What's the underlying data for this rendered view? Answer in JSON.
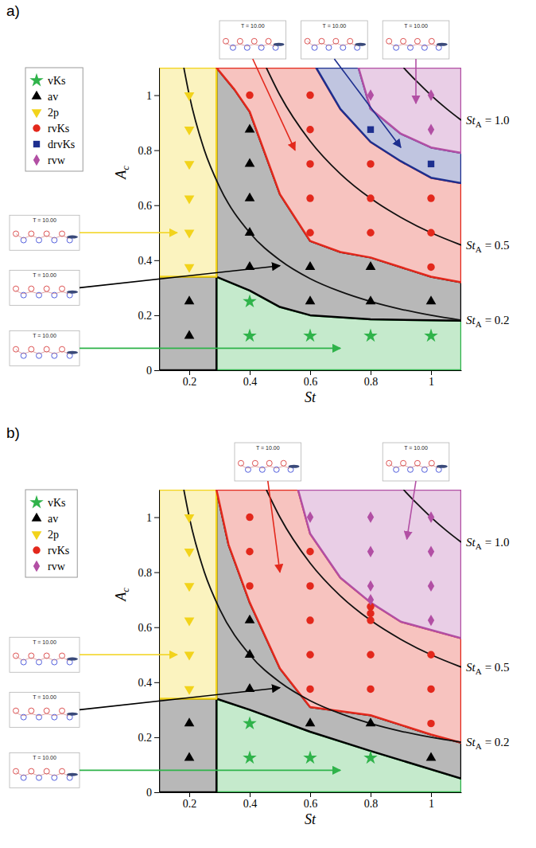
{
  "chart_data": [
    {
      "type": "scatter",
      "title": "a)",
      "x_label": "St",
      "y_label": [
        "A",
        "c"
      ],
      "xlim": [
        0.1,
        1.1
      ],
      "ylim": [
        0,
        1.1
      ],
      "xticks": [
        0.2,
        0.4,
        0.6,
        0.8,
        1
      ],
      "yticks": [
        0,
        0.2,
        0.4,
        0.6,
        0.8,
        1
      ],
      "legend": "left",
      "series": [
        {
          "name": "vKs",
          "color": "#2fb34a",
          "marker": "star",
          "x": [
            0.4,
            0.4,
            0.6,
            0.8,
            1.0
          ],
          "values": [
            0.25,
            0.125,
            0.125,
            0.125,
            0.125
          ],
          "regions": [
            {
              "x": [
                0.29,
                0.29,
                0.4,
                0.5,
                0.6,
                0.8,
                1.1,
                1.1
              ],
              "y": [
                0,
                0.34,
                0.29,
                0.23,
                0.2,
                0.185,
                0.18,
                0
              ]
            }
          ],
          "inset": "T = 10.00"
        },
        {
          "name": "av",
          "color": "#000000",
          "marker": "triangle-up",
          "x": [
            0.2,
            0.2,
            0.4,
            0.4,
            0.4,
            0.4,
            0.4,
            0.6,
            0.6,
            0.8,
            0.8,
            1.0
          ],
          "values": [
            0.25,
            0.125,
            0.875,
            0.75,
            0.625,
            0.5,
            0.375,
            0.375,
            0.25,
            0.375,
            0.25,
            0.25
          ],
          "regions": [
            {
              "x": [
                0.1,
                0.1,
                0.29,
                0.29
              ],
              "y": [
                0,
                0.34,
                0.34,
                0
              ]
            },
            {
              "x": [
                0.29,
                0.4,
                0.5,
                0.6,
                0.8,
                1.1,
                1.1,
                1.0,
                0.8,
                0.7,
                0.6,
                0.5,
                0.4,
                0.35,
                0.29
              ],
              "y": [
                0.34,
                0.29,
                0.23,
                0.2,
                0.185,
                0.18,
                0.32,
                0.34,
                0.41,
                0.43,
                0.47,
                0.64,
                0.94,
                1.02,
                1.1
              ]
            }
          ],
          "inset": "T = 10.00"
        },
        {
          "name": "2p",
          "color": "#f2d31b",
          "marker": "triangle-down",
          "x": [
            0.2,
            0.2,
            0.2,
            0.2,
            0.2,
            0.2
          ],
          "values": [
            1.0,
            0.875,
            0.75,
            0.625,
            0.5,
            0.375
          ],
          "regions": [
            {
              "x": [
                0.1,
                0.1,
                0.29,
                0.29
              ],
              "y": [
                0.34,
                1.1,
                1.1,
                0.34
              ]
            }
          ],
          "inset": "T = 10.00"
        },
        {
          "name": "rvKs",
          "color": "#e3281c",
          "marker": "circle",
          "x": [
            0.4,
            0.6,
            0.6,
            0.6,
            0.6,
            0.6,
            0.8,
            0.8,
            0.8,
            1.0,
            1.0,
            1.0
          ],
          "values": [
            1.0,
            1.0,
            0.875,
            0.75,
            0.625,
            0.5,
            0.75,
            0.625,
            0.5,
            0.625,
            0.5,
            0.375
          ],
          "regions": [
            {
              "x": [
                0.29,
                0.35,
                0.4,
                0.5,
                0.6,
                0.7,
                0.8,
                1.0,
                1.1,
                1.1,
                1.0,
                0.9,
                0.8,
                0.7,
                0.62
              ],
              "y": [
                1.1,
                1.02,
                0.94,
                0.64,
                0.47,
                0.43,
                0.41,
                0.34,
                0.32,
                0.68,
                0.7,
                0.76,
                0.83,
                0.95,
                1.1
              ]
            }
          ],
          "inset": "T = 10.00"
        },
        {
          "name": "drvKs",
          "color": "#1d2f8f",
          "marker": "square",
          "x": [
            0.8,
            1.0
          ],
          "values": [
            0.875,
            0.75
          ],
          "regions": [
            {
              "x": [
                0.62,
                0.7,
                0.8,
                0.9,
                1.0,
                1.1,
                1.1,
                1.0,
                0.9,
                0.8,
                0.76
              ],
              "y": [
                1.1,
                0.95,
                0.83,
                0.76,
                0.7,
                0.68,
                0.79,
                0.81,
                0.86,
                0.95,
                1.1
              ]
            }
          ],
          "inset": "T = 10.00"
        },
        {
          "name": "rvw",
          "color": "#b24fa4",
          "marker": "diamond",
          "x": [
            0.8,
            1.0,
            1.0
          ],
          "values": [
            1.0,
            1.0,
            0.875
          ],
          "regions": [
            {
              "x": [
                0.76,
                0.8,
                0.9,
                1.0,
                1.1,
                1.1
              ],
              "y": [
                1.1,
                0.95,
                0.86,
                0.81,
                0.79,
                1.1
              ]
            }
          ],
          "inset": "T = 10.00"
        }
      ],
      "curves": [
        {
          "label": [
            "St",
            "A",
            "= 1.0"
          ],
          "x": [
            0.909,
            0.95,
            1.0,
            1.05,
            1.1
          ],
          "y": [
            1.1,
            1.053,
            1.0,
            0.952,
            0.909
          ]
        },
        {
          "label": [
            "St",
            "A",
            "= 0.5"
          ],
          "x": [
            0.455,
            0.5,
            0.6,
            0.7,
            0.8,
            0.9,
            1.0,
            1.1
          ],
          "y": [
            1.1,
            1.0,
            0.833,
            0.714,
            0.625,
            0.556,
            0.5,
            0.455
          ]
        },
        {
          "label": [
            "St",
            "A",
            "= 0.2"
          ],
          "x": [
            0.182,
            0.2,
            0.25,
            0.3,
            0.4,
            0.5,
            0.6,
            0.7,
            0.8,
            0.9,
            1.0,
            1.1
          ],
          "y": [
            1.1,
            1.0,
            0.8,
            0.667,
            0.5,
            0.4,
            0.333,
            0.286,
            0.25,
            0.222,
            0.2,
            0.182
          ]
        }
      ]
    },
    {
      "type": "scatter",
      "title": "b)",
      "x_label": "St",
      "y_label": [
        "A",
        "c"
      ],
      "xlim": [
        0.1,
        1.1
      ],
      "ylim": [
        0,
        1.1
      ],
      "xticks": [
        0.2,
        0.4,
        0.6,
        0.8,
        1
      ],
      "yticks": [
        0,
        0.2,
        0.4,
        0.6,
        0.8,
        1
      ],
      "legend": "left",
      "series": [
        {
          "name": "vKs",
          "color": "#2fb34a",
          "marker": "star",
          "x": [
            0.4,
            0.4,
            0.6,
            0.8
          ],
          "values": [
            0.25,
            0.125,
            0.125,
            0.125
          ],
          "regions": [
            {
              "x": [
                0.29,
                0.29,
                0.4,
                0.6,
                0.8,
                1.1,
                1.1
              ],
              "y": [
                0,
                0.34,
                0.3,
                0.22,
                0.15,
                0.05,
                0
              ]
            }
          ],
          "inset": "T = 10.00"
        },
        {
          "name": "av",
          "color": "#000000",
          "marker": "triangle-up",
          "x": [
            0.2,
            0.2,
            0.4,
            0.4,
            0.4,
            0.6,
            0.8,
            1.0
          ],
          "values": [
            0.25,
            0.125,
            0.625,
            0.5,
            0.375,
            0.25,
            0.25,
            0.125
          ],
          "regions": [
            {
              "x": [
                0.1,
                0.1,
                0.29,
                0.29
              ],
              "y": [
                0,
                0.34,
                0.34,
                0
              ]
            },
            {
              "x": [
                0.29,
                0.4,
                0.6,
                0.8,
                1.1,
                1.1,
                1.0,
                0.8,
                0.6,
                0.5,
                0.4,
                0.33,
                0.29
              ],
              "y": [
                0.34,
                0.3,
                0.22,
                0.15,
                0.05,
                0.18,
                0.21,
                0.28,
                0.31,
                0.45,
                0.69,
                0.9,
                1.1
              ]
            }
          ],
          "inset": "T = 10.00"
        },
        {
          "name": "2p",
          "color": "#f2d31b",
          "marker": "triangle-down",
          "x": [
            0.2,
            0.2,
            0.2,
            0.2,
            0.2,
            0.2
          ],
          "values": [
            1.0,
            0.875,
            0.75,
            0.625,
            0.5,
            0.375
          ],
          "regions": [
            {
              "x": [
                0.1,
                0.1,
                0.29,
                0.29
              ],
              "y": [
                0.34,
                1.1,
                1.1,
                0.34
              ]
            }
          ],
          "inset": "T = 10.00"
        },
        {
          "name": "rvKs",
          "color": "#e3281c",
          "marker": "circle",
          "x": [
            0.4,
            0.4,
            0.4,
            0.6,
            0.6,
            0.6,
            0.6,
            0.6,
            0.8,
            0.8,
            0.8,
            0.8,
            0.8,
            1.0,
            1.0,
            1.0
          ],
          "values": [
            1.0,
            0.875,
            0.75,
            0.875,
            0.75,
            0.625,
            0.5,
            0.375,
            0.675,
            0.65,
            0.625,
            0.5,
            0.375,
            0.5,
            0.375,
            0.25
          ],
          "regions": [
            {
              "x": [
                0.29,
                0.33,
                0.4,
                0.5,
                0.6,
                0.8,
                1.0,
                1.1,
                1.1,
                0.9,
                0.8,
                0.7,
                0.6,
                0.56
              ],
              "y": [
                1.1,
                0.9,
                0.69,
                0.45,
                0.31,
                0.28,
                0.21,
                0.18,
                0.56,
                0.62,
                0.69,
                0.78,
                0.94,
                1.1
              ]
            }
          ],
          "inset": "T = 10.00"
        },
        {
          "name": "rvw",
          "color": "#b24fa4",
          "marker": "diamond",
          "x": [
            0.6,
            0.8,
            0.8,
            0.8,
            0.8,
            1.0,
            1.0,
            1.0,
            1.0
          ],
          "values": [
            1.0,
            1.0,
            0.875,
            0.75,
            0.7,
            1.0,
            0.875,
            0.75,
            0.625
          ],
          "regions": [
            {
              "x": [
                0.56,
                0.6,
                0.7,
                0.8,
                0.9,
                1.1,
                1.1
              ],
              "y": [
                1.1,
                0.94,
                0.78,
                0.69,
                0.62,
                0.56,
                1.1
              ]
            }
          ],
          "inset": "T = 10.00"
        }
      ],
      "curves": [
        {
          "label": [
            "St",
            "A",
            "= 1.0"
          ],
          "x": [
            0.909,
            0.95,
            1.0,
            1.05,
            1.1
          ],
          "y": [
            1.1,
            1.053,
            1.0,
            0.952,
            0.909
          ]
        },
        {
          "label": [
            "St",
            "A",
            "= 0.5"
          ],
          "x": [
            0.455,
            0.5,
            0.6,
            0.7,
            0.8,
            0.9,
            1.0,
            1.1
          ],
          "y": [
            1.1,
            1.0,
            0.833,
            0.714,
            0.625,
            0.556,
            0.5,
            0.455
          ]
        },
        {
          "label": [
            "St",
            "A",
            "= 0.2"
          ],
          "x": [
            0.182,
            0.2,
            0.25,
            0.3,
            0.4,
            0.5,
            0.6,
            0.7,
            0.8,
            0.9,
            1.0,
            1.1
          ],
          "y": [
            1.1,
            1.0,
            0.8,
            0.667,
            0.5,
            0.4,
            0.333,
            0.286,
            0.25,
            0.222,
            0.2,
            0.182
          ]
        }
      ]
    }
  ]
}
